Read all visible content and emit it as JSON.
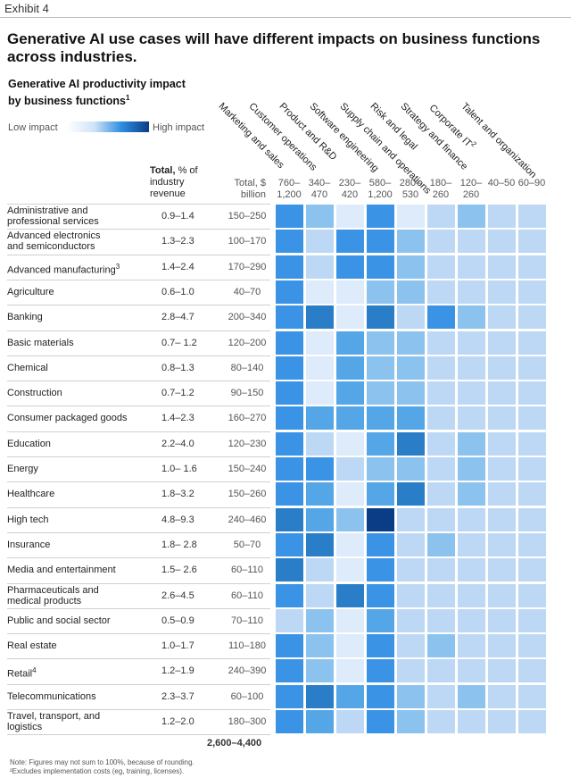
{
  "exhibit": "Exhibit 4",
  "title": "Generative AI use cases will have different impacts on business functions across industries.",
  "subtitle": "Generative AI productivity impact by business functions",
  "subtitle_sup": "1",
  "legend": {
    "low": "Low impact",
    "high": "High impact"
  },
  "header": {
    "total_bold": "Total,",
    "total_rest": " % of industry revenue",
    "total_bn": "Total, $ billion",
    "grand_total": "2,600–4,400"
  },
  "note": "Note: Figures may not sum to 100%, because of rounding.",
  "footnote": "²Excludes implementation costs (eg, training, licenses).",
  "colors": {
    "level1": "#ddebfa",
    "level2": "#bcd8f4",
    "level3": "#8cc2ee",
    "level4": "#55a6e6",
    "level5": "#3a93e4",
    "level6": "#2a7dc7",
    "level7": "#0b3d86"
  },
  "chart_data": {
    "type": "heatmap",
    "title": "Generative AI use cases will have different impacts on business functions across industries.",
    "functions": [
      {
        "name": "Marketing and sales",
        "total": "760–1,200"
      },
      {
        "name": "Customer operations",
        "total": "340–470"
      },
      {
        "name": "Product and R&D",
        "total": "230–420"
      },
      {
        "name": "Software engineering",
        "total": "580–1,200"
      },
      {
        "name": "Supply chain and operations",
        "total": "280–530"
      },
      {
        "name": "Risk and legal",
        "total": "180–260"
      },
      {
        "name": "Strategy and finance",
        "total": "120–260"
      },
      {
        "name": "Corporate IT",
        "total": "40–50",
        "sup": "2"
      },
      {
        "name": "Talent and organization",
        "total": "60–90"
      }
    ],
    "industries": [
      {
        "name": "Administrative and professional services",
        "revenue": "0.9–1.4",
        "billion": "150–250",
        "impact": [
          5,
          3,
          1,
          5,
          1,
          2,
          3,
          2,
          2
        ]
      },
      {
        "name": "Advanced electronics and semiconductors",
        "revenue": "1.3–2.3",
        "billion": "100–170",
        "impact": [
          5,
          2,
          5,
          5,
          3,
          2,
          2,
          2,
          2
        ]
      },
      {
        "name": "Advanced manufacturing",
        "sup": "3",
        "revenue": "1.4–2.4",
        "billion": "170–290",
        "impact": [
          5,
          2,
          5,
          5,
          3,
          2,
          2,
          2,
          2
        ]
      },
      {
        "name": "Agriculture",
        "revenue": "0.6–1.0",
        "billion": "40–70",
        "impact": [
          5,
          1,
          1,
          3,
          3,
          2,
          2,
          2,
          2
        ]
      },
      {
        "name": "Banking",
        "revenue": "2.8–4.7",
        "billion": "200–340",
        "impact": [
          5,
          6,
          1,
          6,
          2,
          5,
          3,
          2,
          2
        ]
      },
      {
        "name": "Basic materials",
        "revenue": "0.7– 1.2",
        "billion": "120–200",
        "impact": [
          5,
          1,
          4,
          3,
          3,
          2,
          2,
          2,
          2
        ]
      },
      {
        "name": "Chemical",
        "revenue": "0.8–1.3",
        "billion": "80–140",
        "impact": [
          5,
          1,
          4,
          3,
          3,
          2,
          2,
          2,
          2
        ]
      },
      {
        "name": "Construction",
        "revenue": "0.7–1.2",
        "billion": "90–150",
        "impact": [
          5,
          1,
          4,
          3,
          3,
          2,
          2,
          2,
          2
        ]
      },
      {
        "name": "Consumer packaged goods",
        "revenue": "1.4–2.3",
        "billion": "160–270",
        "impact": [
          5,
          4,
          4,
          4,
          4,
          2,
          2,
          2,
          2
        ]
      },
      {
        "name": "Education",
        "revenue": "2.2–4.0",
        "billion": "120–230",
        "impact": [
          5,
          2,
          1,
          4,
          6,
          2,
          3,
          2,
          2
        ]
      },
      {
        "name": "Energy",
        "revenue": "1.0– 1.6",
        "billion": "150–240",
        "impact": [
          5,
          5,
          2,
          3,
          3,
          2,
          3,
          2,
          2
        ]
      },
      {
        "name": "Healthcare",
        "revenue": "1.8–3.2",
        "billion": "150–260",
        "impact": [
          5,
          4,
          1,
          4,
          6,
          2,
          3,
          2,
          2
        ]
      },
      {
        "name": "High tech",
        "revenue": "4.8–9.3",
        "billion": "240–460",
        "impact": [
          6,
          4,
          3,
          7,
          2,
          2,
          2,
          2,
          2
        ]
      },
      {
        "name": "Insurance",
        "revenue": "1.8– 2.8",
        "billion": "50–70",
        "impact": [
          5,
          6,
          1,
          5,
          2,
          3,
          2,
          2,
          2
        ]
      },
      {
        "name": "Media and entertainment",
        "revenue": "1.5– 2.6",
        "billion": "60–110",
        "impact": [
          6,
          2,
          1,
          5,
          2,
          2,
          2,
          2,
          2
        ]
      },
      {
        "name": "Pharmaceuticals and medical products",
        "revenue": "2.6–4.5",
        "billion": "60–110",
        "impact": [
          5,
          2,
          6,
          5,
          2,
          2,
          2,
          2,
          2
        ]
      },
      {
        "name": "Public and social sector",
        "revenue": "0.5–0.9",
        "billion": "70–110",
        "impact": [
          2,
          3,
          1,
          4,
          2,
          2,
          2,
          2,
          2
        ]
      },
      {
        "name": "Real estate",
        "revenue": "1.0–1.7",
        "billion": "110–180",
        "impact": [
          5,
          3,
          1,
          5,
          2,
          3,
          2,
          2,
          2
        ]
      },
      {
        "name": "Retail",
        "sup": "4",
        "revenue": "1.2–1.9",
        "billion": "240–390",
        "impact": [
          5,
          3,
          1,
          5,
          2,
          2,
          2,
          2,
          2
        ]
      },
      {
        "name": "Telecommunications",
        "revenue": "2.3–3.7",
        "billion": "60–100",
        "impact": [
          5,
          6,
          4,
          5,
          3,
          2,
          3,
          2,
          2
        ]
      },
      {
        "name": "Travel, transport, and logistics",
        "revenue": "1.2–2.0",
        "billion": "180–300",
        "impact": [
          5,
          4,
          2,
          5,
          3,
          2,
          2,
          2,
          2
        ]
      }
    ]
  }
}
